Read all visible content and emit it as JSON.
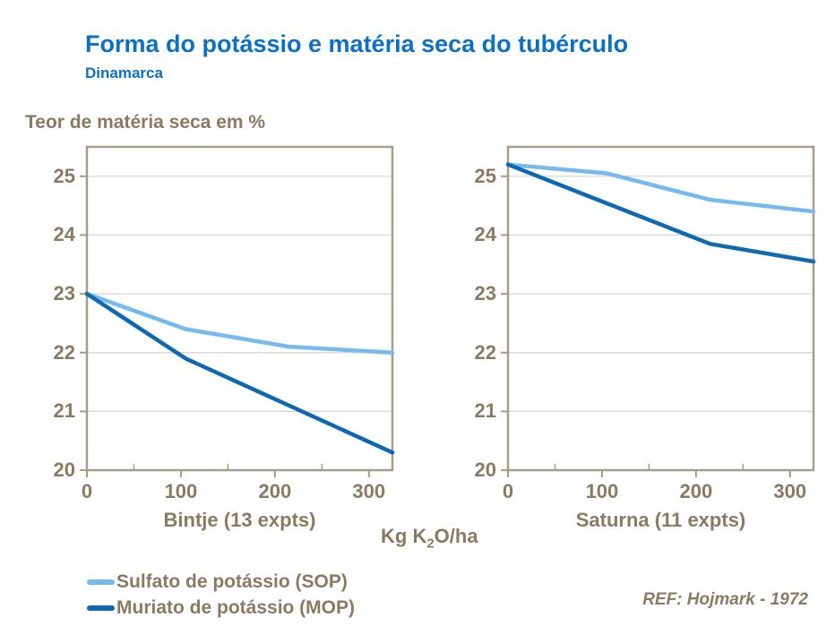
{
  "slide": {
    "title": "Forma do potássio e matéria seca do tubérculo",
    "subtitle": "Dinamarca",
    "y_axis_title": "Teor de matéria seca em %",
    "x_axis_unit": {
      "pre": "Kg K",
      "sub": "2",
      "post": "O/ha"
    },
    "ref_note": "REF: Hojmark - 1972"
  },
  "colors": {
    "title_blue": "#0C70C6",
    "text_brown": "#8B7A62",
    "axis_tan": "#A99C87",
    "grid_gray": "#D9D5CD",
    "sop_light_blue": "#74B9F0",
    "mop_dark_blue": "#0E68B2",
    "background": "#FFFFFF"
  },
  "legend": {
    "items": [
      {
        "id": "sop",
        "label": "Sulfato de potássio (SOP)",
        "color": "#74B9F0"
      },
      {
        "id": "mop",
        "label": "Muriato de potássio (MOP)",
        "color": "#0E68B2"
      }
    ],
    "position": "bottom-left"
  },
  "chart_data": [
    {
      "type": "line",
      "title": "Bintje (13 expts)",
      "xlabel": "Kg K2O/ha",
      "ylabel": "Teor de matéria seca em %",
      "xlim": [
        0,
        325
      ],
      "ylim": [
        20,
        25.5
      ],
      "x_ticks": [
        0,
        100,
        200,
        300
      ],
      "x_minor_ticks": [
        50,
        150,
        250
      ],
      "y_ticks": [
        20,
        21,
        22,
        23,
        24,
        25
      ],
      "grid": "horizontal",
      "series": [
        {
          "id": "sop",
          "name": "Sulfato de potássio (SOP)",
          "color": "#74B9F0",
          "points": [
            [
              0,
              23.0
            ],
            [
              105,
              22.4
            ],
            [
              215,
              22.1
            ],
            [
              325,
              22.0
            ]
          ]
        },
        {
          "id": "mop",
          "name": "Muriato de potássio (MOP)",
          "color": "#0E68B2",
          "points": [
            [
              0,
              23.0
            ],
            [
              105,
              21.9
            ],
            [
              325,
              20.3
            ]
          ]
        }
      ]
    },
    {
      "type": "line",
      "title": "Saturna (11 expts)",
      "xlabel": "Kg K2O/ha",
      "ylabel": "Teor de matéria seca em %",
      "xlim": [
        0,
        325
      ],
      "ylim": [
        20,
        25.5
      ],
      "x_ticks": [
        0,
        100,
        200,
        300
      ],
      "x_minor_ticks": [
        50,
        150,
        250
      ],
      "y_ticks": [
        20,
        21,
        22,
        23,
        24,
        25
      ],
      "grid": "horizontal",
      "series": [
        {
          "id": "sop",
          "name": "Sulfato de potássio (SOP)",
          "color": "#74B9F0",
          "points": [
            [
              0,
              25.2
            ],
            [
              105,
              25.05
            ],
            [
              215,
              24.6
            ],
            [
              325,
              24.4
            ]
          ]
        },
        {
          "id": "mop",
          "name": "Muriato de potássio (MOP)",
          "color": "#0E68B2",
          "points": [
            [
              0,
              25.2
            ],
            [
              215,
              23.85
            ],
            [
              325,
              23.55
            ]
          ]
        }
      ]
    }
  ]
}
